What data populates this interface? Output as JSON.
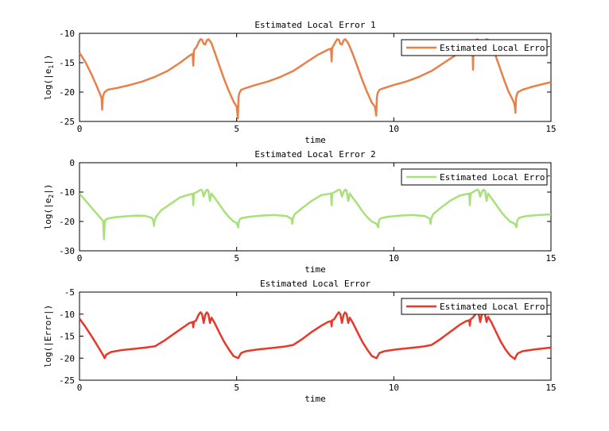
{
  "chart_data": [
    {
      "type": "line",
      "title": "Estimated Local Error 1",
      "xlabel": "time",
      "ylabel_main": "log(|e",
      "ylabel_sub": "1",
      "ylabel_end": "|)",
      "xlim": [
        0,
        15
      ],
      "ylim": [
        -25,
        -10
      ],
      "xticks": [
        0,
        5,
        10,
        15
      ],
      "yticks": [
        -25,
        -20,
        -15,
        -10
      ],
      "legend": "top-right",
      "grid": false,
      "series": [
        {
          "name": "Estimated Local Error",
          "color": "#e8804a",
          "x": [
            0,
            0.2,
            0.4,
            0.55,
            0.65,
            0.7,
            0.72,
            0.74,
            0.76,
            0.8,
            0.9,
            1.2,
            1.6,
            2.0,
            2.4,
            2.8,
            3.2,
            3.5,
            3.6,
            3.62,
            3.64,
            3.66,
            3.7,
            3.75,
            3.8,
            3.85,
            3.9,
            3.95,
            4.0,
            4.05,
            4.1,
            4.15,
            4.2,
            4.3,
            4.45,
            4.6,
            4.75,
            4.9,
            5.0,
            5.04,
            5.06,
            5.08,
            5.1,
            5.15,
            5.3,
            5.6,
            6.0,
            6.4,
            6.8,
            7.2,
            7.6,
            7.9,
            8.0,
            8.02,
            8.04,
            8.06,
            8.1,
            8.15,
            8.2,
            8.25,
            8.3,
            8.35,
            8.4,
            8.45,
            8.5,
            8.55,
            8.6,
            8.7,
            8.85,
            9.0,
            9.15,
            9.3,
            9.4,
            9.44,
            9.46,
            9.48,
            9.5,
            9.55,
            9.7,
            10.0,
            10.4,
            10.8,
            11.2,
            11.6,
            12.0,
            12.3,
            12.4,
            12.5,
            12.52,
            12.54,
            12.56,
            12.6,
            12.65,
            12.7,
            12.75,
            12.8,
            12.85,
            12.9,
            12.95,
            13.0,
            13.05,
            13.1,
            13.2,
            13.35,
            13.5,
            13.65,
            13.8,
            13.85,
            13.87,
            13.89,
            13.91,
            13.95,
            14.1,
            14.4,
            14.7,
            15.0
          ],
          "y": [
            -13.3,
            -15.0,
            -17.2,
            -19.0,
            -20.3,
            -21.0,
            -23.0,
            -21.0,
            -20.5,
            -20.0,
            -19.6,
            -19.3,
            -18.8,
            -18.2,
            -17.4,
            -16.4,
            -15.0,
            -13.8,
            -13.5,
            -15.5,
            -13.0,
            -12.7,
            -12.5,
            -12.0,
            -11.4,
            -11.0,
            -11.1,
            -11.8,
            -11.9,
            -11.2,
            -11.0,
            -11.3,
            -11.7,
            -13.2,
            -15.5,
            -17.8,
            -19.8,
            -21.6,
            -22.5,
            -24.5,
            -21.0,
            -20.3,
            -20.0,
            -19.6,
            -19.3,
            -18.8,
            -18.2,
            -17.4,
            -16.4,
            -15.0,
            -13.6,
            -12.8,
            -12.6,
            -14.8,
            -12.5,
            -12.3,
            -11.9,
            -11.4,
            -11.0,
            -11.1,
            -11.8,
            -11.9,
            -11.2,
            -11.0,
            -11.3,
            -11.7,
            -12.3,
            -13.6,
            -15.8,
            -18.0,
            -20.0,
            -21.8,
            -22.5,
            -24.0,
            -21.0,
            -20.3,
            -20.0,
            -19.6,
            -19.3,
            -18.8,
            -18.2,
            -17.4,
            -16.4,
            -15.0,
            -13.6,
            -12.3,
            -12.0,
            -11.9,
            -16.2,
            -11.7,
            -11.5,
            -11.3,
            -11.0,
            -11.2,
            -11.6,
            -11.8,
            -13.5,
            -11.4,
            -11.0,
            -11.1,
            -11.4,
            -11.8,
            -13.2,
            -15.5,
            -17.8,
            -19.9,
            -21.5,
            -22.3,
            -23.5,
            -21.0,
            -20.5,
            -20.0,
            -19.6,
            -19.1,
            -18.7,
            -18.3
          ]
        }
      ]
    },
    {
      "type": "line",
      "title": "Estimated Local Error 2",
      "xlabel": "time",
      "ylabel_main": "log(|e",
      "ylabel_sub": "2",
      "ylabel_end": "|)",
      "xlim": [
        0,
        15
      ],
      "ylim": [
        -30,
        0
      ],
      "xticks": [
        0,
        5,
        10,
        15
      ],
      "yticks": [
        -30,
        -20,
        -10,
        0
      ],
      "legend": "top-right",
      "grid": false,
      "series": [
        {
          "name": "Estimated Local Error",
          "color": "#a8e07a",
          "x": [
            0,
            0.2,
            0.4,
            0.6,
            0.75,
            0.78,
            0.8,
            0.82,
            0.9,
            1.1,
            1.4,
            1.8,
            2.1,
            2.3,
            2.35,
            2.37,
            2.39,
            2.45,
            2.6,
            2.9,
            3.2,
            3.5,
            3.6,
            3.62,
            3.64,
            3.7,
            3.8,
            3.85,
            3.9,
            3.95,
            4.0,
            4.05,
            4.1,
            4.15,
            4.2,
            4.3,
            4.45,
            4.6,
            4.75,
            4.9,
            5.0,
            5.05,
            5.07,
            5.09,
            5.15,
            5.4,
            5.8,
            6.2,
            6.6,
            6.75,
            6.77,
            6.79,
            6.85,
            7.1,
            7.4,
            7.7,
            8.0,
            8.02,
            8.04,
            8.1,
            8.2,
            8.25,
            8.3,
            8.35,
            8.4,
            8.45,
            8.5,
            8.55,
            8.6,
            8.7,
            8.85,
            9.0,
            9.15,
            9.3,
            9.45,
            9.5,
            9.52,
            9.54,
            9.6,
            9.8,
            10.2,
            10.6,
            11.0,
            11.15,
            11.17,
            11.19,
            11.25,
            11.5,
            11.8,
            12.1,
            12.4,
            12.42,
            12.44,
            12.5,
            12.6,
            12.65,
            12.7,
            12.75,
            12.8,
            12.85,
            12.9,
            12.95,
            13.0,
            13.1,
            13.25,
            13.4,
            13.55,
            13.7,
            13.85,
            13.9,
            13.92,
            13.94,
            14.0,
            14.2,
            14.6,
            15.0
          ],
          "y": [
            -10.5,
            -13.0,
            -15.5,
            -18.0,
            -19.8,
            -26.0,
            -21.0,
            -19.5,
            -19.0,
            -18.6,
            -18.3,
            -18.0,
            -18.1,
            -18.8,
            -19.8,
            -21.5,
            -19.6,
            -18.2,
            -16.2,
            -14.0,
            -11.8,
            -10.8,
            -10.6,
            -14.5,
            -10.4,
            -10.2,
            -9.6,
            -9.2,
            -9.4,
            -11.5,
            -10.0,
            -9.2,
            -9.5,
            -13.0,
            -10.5,
            -12.0,
            -14.2,
            -16.5,
            -18.5,
            -20.0,
            -20.5,
            -22.0,
            -20.2,
            -19.4,
            -18.9,
            -18.4,
            -18.0,
            -17.8,
            -18.2,
            -19.2,
            -20.8,
            -19.0,
            -17.5,
            -15.3,
            -12.9,
            -11.0,
            -10.5,
            -14.5,
            -10.4,
            -10.1,
            -9.5,
            -9.2,
            -9.4,
            -11.5,
            -10.0,
            -9.2,
            -9.5,
            -13.0,
            -10.5,
            -12.0,
            -14.2,
            -16.5,
            -18.5,
            -20.0,
            -20.8,
            -22.0,
            -20.2,
            -19.4,
            -18.9,
            -18.4,
            -18.0,
            -17.8,
            -18.2,
            -19.2,
            -20.8,
            -19.0,
            -17.5,
            -15.3,
            -12.9,
            -11.2,
            -10.5,
            -14.5,
            -10.4,
            -10.1,
            -9.5,
            -9.2,
            -9.4,
            -11.5,
            -10.0,
            -9.2,
            -9.5,
            -13.0,
            -10.5,
            -12.0,
            -14.2,
            -16.5,
            -18.5,
            -20.0,
            -20.8,
            -22.0,
            -20.2,
            -19.4,
            -18.7,
            -18.2,
            -17.8,
            -17.6
          ]
        }
      ]
    },
    {
      "type": "line",
      "title": "Estimated Local Error",
      "xlabel": "time",
      "ylabel_main": "log(|Error|)",
      "ylabel_sub": "",
      "ylabel_end": "",
      "xlim": [
        0,
        15
      ],
      "ylim": [
        -25,
        -5
      ],
      "xticks": [
        0,
        5,
        10,
        15
      ],
      "yticks": [
        -25,
        -20,
        -15,
        -10,
        -5
      ],
      "legend": "top-right",
      "grid": false,
      "series": [
        {
          "name": "Estimated Local Error",
          "color": "#e8382a",
          "x": [
            0,
            0.2,
            0.4,
            0.6,
            0.75,
            0.8,
            0.85,
            1.0,
            1.3,
            1.7,
            2.1,
            2.4,
            2.7,
            3.0,
            3.3,
            3.5,
            3.6,
            3.62,
            3.64,
            3.7,
            3.8,
            3.85,
            3.9,
            3.95,
            4.0,
            4.05,
            4.1,
            4.15,
            4.2,
            4.3,
            4.45,
            4.6,
            4.75,
            4.9,
            5.05,
            5.1,
            5.15,
            5.3,
            5.7,
            6.1,
            6.5,
            6.8,
            7.1,
            7.4,
            7.7,
            7.9,
            8.0,
            8.02,
            8.04,
            8.1,
            8.2,
            8.25,
            8.3,
            8.35,
            8.4,
            8.45,
            8.5,
            8.55,
            8.6,
            8.7,
            8.85,
            9.0,
            9.15,
            9.3,
            9.45,
            9.5,
            9.55,
            9.7,
            10.1,
            10.5,
            10.9,
            11.2,
            11.5,
            11.8,
            12.1,
            12.3,
            12.4,
            12.42,
            12.44,
            12.5,
            12.6,
            12.65,
            12.7,
            12.75,
            12.8,
            12.85,
            12.9,
            12.95,
            13.0,
            13.1,
            13.25,
            13.4,
            13.55,
            13.7,
            13.85,
            13.9,
            13.95,
            14.1,
            14.5,
            15.0
          ],
          "y": [
            -11.0,
            -13.0,
            -15.2,
            -17.5,
            -19.3,
            -20.0,
            -19.2,
            -18.6,
            -18.2,
            -17.9,
            -17.6,
            -17.3,
            -16.0,
            -14.5,
            -13.0,
            -12.0,
            -11.8,
            -13.0,
            -11.7,
            -11.5,
            -10.0,
            -9.6,
            -10.0,
            -12.0,
            -10.2,
            -9.6,
            -10.0,
            -12.0,
            -10.8,
            -12.0,
            -14.2,
            -16.3,
            -18.0,
            -19.5,
            -20.0,
            -19.3,
            -18.8,
            -18.4,
            -18.0,
            -17.7,
            -17.4,
            -17.0,
            -15.6,
            -14.0,
            -12.6,
            -11.8,
            -11.6,
            -12.8,
            -11.4,
            -11.2,
            -10.0,
            -9.6,
            -10.0,
            -12.0,
            -10.2,
            -9.6,
            -10.0,
            -12.0,
            -10.8,
            -12.0,
            -14.2,
            -16.3,
            -18.0,
            -19.5,
            -20.0,
            -19.3,
            -18.8,
            -18.4,
            -18.0,
            -17.7,
            -17.4,
            -17.0,
            -15.6,
            -14.0,
            -12.4,
            -11.6,
            -11.4,
            -12.6,
            -11.2,
            -10.9,
            -10.0,
            -9.6,
            -10.0,
            -11.8,
            -10.1,
            -9.6,
            -10.0,
            -11.8,
            -10.6,
            -11.8,
            -14.0,
            -16.2,
            -18.0,
            -19.4,
            -20.2,
            -19.4,
            -18.9,
            -18.4,
            -18.0,
            -17.6
          ]
        }
      ]
    }
  ]
}
